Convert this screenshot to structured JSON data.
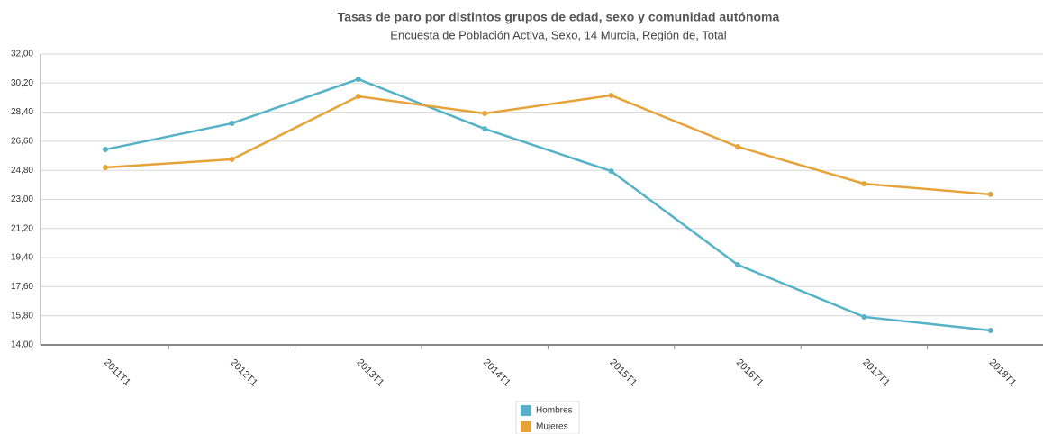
{
  "chart_data": {
    "type": "line",
    "title": "Tasas de paro por distintos grupos de edad, sexo y comunidad autónoma",
    "subtitle": "Encuesta de Población Activa, Sexo, 14 Murcia, Región de, Total",
    "categories": [
      "2011T1",
      "2012T1",
      "2013T1",
      "2014T1",
      "2015T1",
      "2016T1",
      "2017T1",
      "2018T1"
    ],
    "series": [
      {
        "name": "Hombres",
        "color": "#56b2c7",
        "values": [
          26.09,
          27.71,
          30.44,
          27.37,
          24.75,
          18.96,
          15.73,
          14.89
        ]
      },
      {
        "name": "Mujeres",
        "color": "#e5a339",
        "values": [
          24.98,
          25.48,
          29.38,
          28.32,
          29.44,
          26.26,
          23.97,
          23.31
        ]
      }
    ],
    "ylim": [
      14,
      32
    ],
    "yticks": [
      {
        "value": 32,
        "label": "32,00"
      },
      {
        "value": 30.2,
        "label": "30,20"
      },
      {
        "value": 28.4,
        "label": "28,40"
      },
      {
        "value": 26.6,
        "label": "26,60"
      },
      {
        "value": 24.8,
        "label": "24,80"
      },
      {
        "value": 23,
        "label": "23,00"
      },
      {
        "value": 21.2,
        "label": "21,20"
      },
      {
        "value": 19.4,
        "label": "19,40"
      },
      {
        "value": 17.6,
        "label": "17,60"
      },
      {
        "value": 15.8,
        "label": "15,80"
      },
      {
        "value": 14,
        "label": "14,00"
      }
    ],
    "grid": true
  }
}
